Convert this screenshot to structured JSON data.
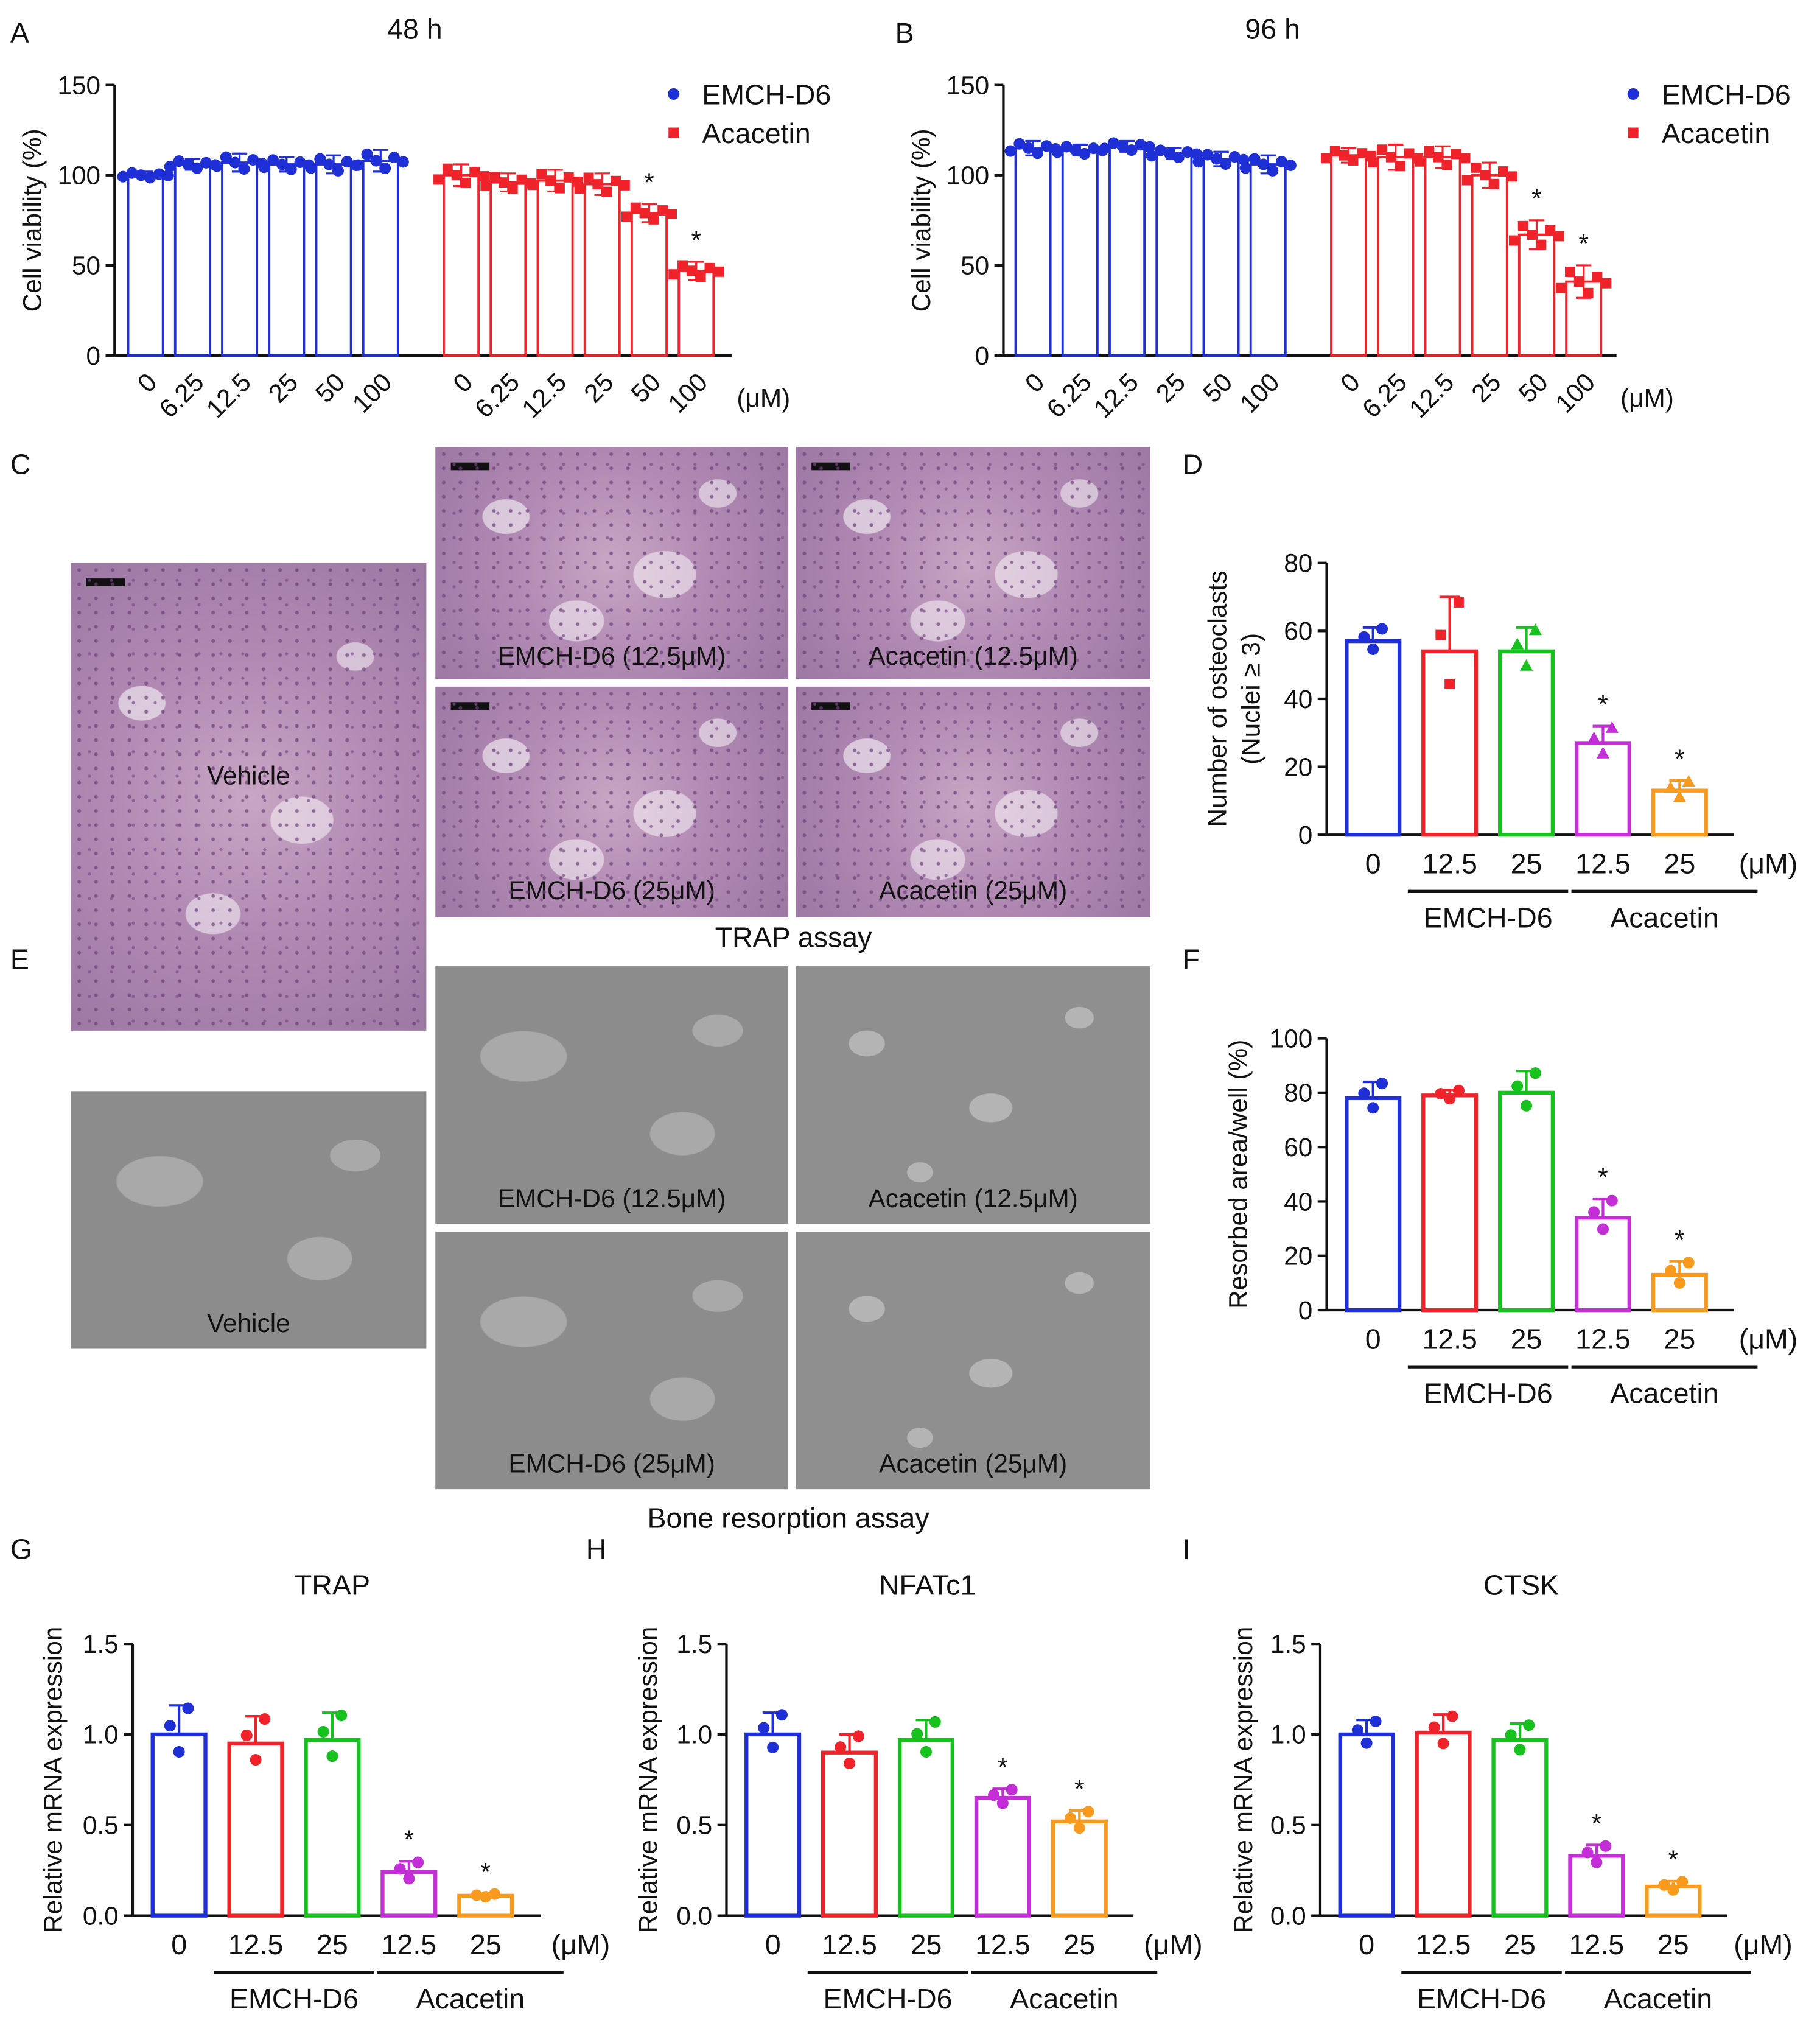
{
  "panel_letters": {
    "A": "A",
    "B": "B",
    "C": "C",
    "D": "D",
    "E": "E",
    "F": "F",
    "G": "G",
    "H": "H",
    "I": "I"
  },
  "colors": {
    "blue": "#1f2fd6",
    "red": "#f0232a",
    "green": "#18c21e",
    "magenta": "#c42ed6",
    "orange": "#f79a1e"
  },
  "micro": {
    "trap_caption": "TRAP assay",
    "resorption_caption": "Bone resorption assay",
    "labels": {
      "vehicle": "Vehicle",
      "emch_low": "EMCH-D6 (12.5μM)",
      "acacetin_low": "Acacetin (12.5μM)",
      "emch_high": "EMCH-D6 (25μM)",
      "acacetin_high": "Acacetin (25μM)"
    }
  },
  "chart_data": [
    {
      "id": "A",
      "type": "bar",
      "title": "48 h",
      "ylabel": "Cell viability (%)",
      "ylim": [
        0,
        150
      ],
      "yticks": [
        "0",
        "50",
        "100",
        "150"
      ],
      "categories": [
        "0",
        "6.25",
        "12.5",
        "25",
        "50",
        "100"
      ],
      "unit": "(μM)",
      "legend": [
        "EMCH-D6",
        "Acacetin"
      ],
      "series": [
        {
          "name": "EMCH-D6",
          "values": [
            100,
            106,
            107,
            106,
            106,
            108
          ],
          "err": [
            2,
            3,
            5,
            4,
            5,
            6
          ]
        },
        {
          "name": "Acacetin",
          "values": [
            100,
            96,
            97,
            95,
            79,
            47
          ],
          "err": [
            6,
            5,
            6,
            6,
            5,
            5
          ],
          "sig": [
            false,
            false,
            false,
            false,
            true,
            true
          ]
        }
      ]
    },
    {
      "id": "B",
      "type": "bar",
      "title": "96 h",
      "ylabel": "Cell viability (%)",
      "ylim": [
        0,
        150
      ],
      "yticks": [
        "0",
        "50",
        "100",
        "150"
      ],
      "categories": [
        "0",
        "6.25",
        "12.5",
        "25",
        "50",
        "100"
      ],
      "unit": "(μM)",
      "legend": [
        "EMCH-D6",
        "Acacetin"
      ],
      "series": [
        {
          "name": "EMCH-D6",
          "values": [
            115,
            114,
            116,
            112,
            109,
            106
          ],
          "err": [
            4,
            3,
            3,
            3,
            4,
            5
          ],
          "sig": [
            false,
            false,
            false,
            false,
            false,
            false
          ]
        },
        {
          "name": "Acacetin",
          "values": [
            111,
            110,
            110,
            100,
            67,
            41
          ],
          "err": [
            4,
            7,
            6,
            7,
            8,
            9
          ],
          "sig": [
            false,
            false,
            false,
            false,
            true,
            true
          ]
        }
      ]
    },
    {
      "id": "D",
      "type": "bar",
      "title": "",
      "ylabel": "Number of osteoclasts",
      "ylabel2": "(Nuclei ≥ 3)",
      "ylim": [
        0,
        80
      ],
      "yticks": [
        "0",
        "20",
        "40",
        "60",
        "80"
      ],
      "categories": [
        "0",
        "12.5",
        "25",
        "12.5",
        "25"
      ],
      "unit": "(μM)",
      "groups": [
        "EMCH-D6",
        "Acacetin"
      ],
      "values": [
        57,
        54,
        54,
        27,
        13
      ],
      "err": [
        4,
        16,
        7,
        5,
        3
      ],
      "sig": [
        false,
        false,
        false,
        true,
        true
      ]
    },
    {
      "id": "F",
      "type": "bar",
      "title": "",
      "ylabel": "Resorbed area/well (%)",
      "ylim": [
        0,
        100
      ],
      "yticks": [
        "0",
        "20",
        "40",
        "60",
        "80",
        "100"
      ],
      "categories": [
        "0",
        "12.5",
        "25",
        "12.5",
        "25"
      ],
      "unit": "(μM)",
      "groups": [
        "EMCH-D6",
        "Acacetin"
      ],
      "values": [
        78,
        79,
        80,
        34,
        13
      ],
      "err": [
        6,
        2,
        8,
        7,
        5
      ],
      "sig": [
        false,
        false,
        false,
        true,
        true
      ]
    },
    {
      "id": "G",
      "type": "bar",
      "title": "TRAP",
      "ylabel": "Relative mRNA expression",
      "ylim": [
        0,
        1.5
      ],
      "yticks": [
        "0.0",
        "0.5",
        "1.0",
        "1.5"
      ],
      "categories": [
        "0",
        "12.5",
        "25",
        "12.5",
        "25"
      ],
      "unit": "(μM)",
      "groups": [
        "EMCH-D6",
        "Acacetin"
      ],
      "values": [
        1.0,
        0.95,
        0.97,
        0.24,
        0.11
      ],
      "err": [
        0.16,
        0.15,
        0.15,
        0.06,
        0.01
      ],
      "sig": [
        false,
        false,
        false,
        true,
        true
      ]
    },
    {
      "id": "H",
      "type": "bar",
      "title": "NFATc1",
      "ylabel": "Relative mRNA expression",
      "ylim": [
        0,
        1.5
      ],
      "yticks": [
        "0.0",
        "0.5",
        "1.0",
        "1.5"
      ],
      "categories": [
        "0",
        "12.5",
        "25",
        "12.5",
        "25"
      ],
      "unit": "(μM)",
      "groups": [
        "EMCH-D6",
        "Acacetin"
      ],
      "values": [
        1.0,
        0.9,
        0.97,
        0.65,
        0.52
      ],
      "err": [
        0.12,
        0.1,
        0.11,
        0.05,
        0.06
      ],
      "sig": [
        false,
        false,
        false,
        true,
        true
      ]
    },
    {
      "id": "I",
      "type": "bar",
      "title": "CTSK",
      "ylabel": "Relative mRNA expression",
      "ylim": [
        0,
        1.5
      ],
      "yticks": [
        "0.0",
        "0.5",
        "1.0",
        "1.5"
      ],
      "categories": [
        "0",
        "12.5",
        "25",
        "12.5",
        "25"
      ],
      "unit": "(μM)",
      "groups": [
        "EMCH-D6",
        "Acacetin"
      ],
      "values": [
        1.0,
        1.01,
        0.97,
        0.33,
        0.16
      ],
      "err": [
        0.08,
        0.1,
        0.09,
        0.06,
        0.03
      ],
      "sig": [
        false,
        false,
        false,
        true,
        true
      ]
    }
  ]
}
